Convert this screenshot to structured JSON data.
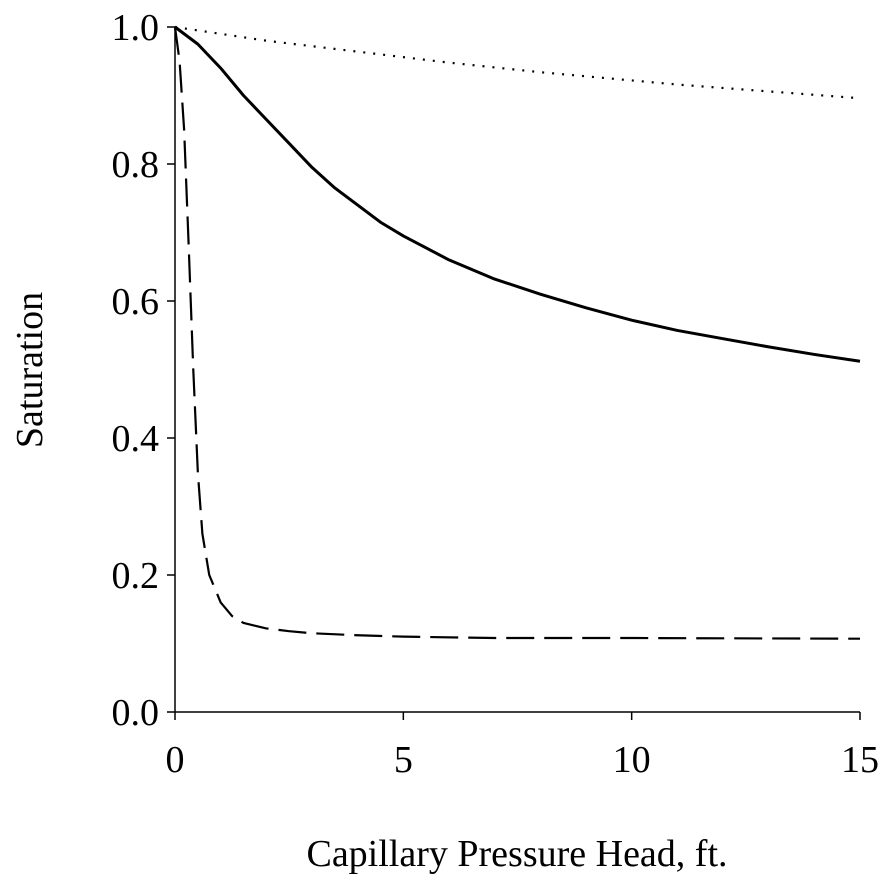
{
  "chart_data": {
    "type": "line",
    "title": "",
    "xlabel": "Capillary Pressure Head, ft.",
    "ylabel": "Saturation",
    "xlim": [
      0,
      15
    ],
    "ylim": [
      0.0,
      1.0
    ],
    "x_ticks": [
      "0",
      "5",
      "10",
      "15"
    ],
    "y_ticks": [
      "0.0",
      "0.2",
      "0.4",
      "0.6",
      "0.8",
      "1.0"
    ],
    "grid": false,
    "legend": "none",
    "series": [
      {
        "style": "solid",
        "color": "#000000",
        "x": [
          0,
          0.5,
          1,
          1.5,
          2,
          2.5,
          3,
          3.5,
          4,
          4.5,
          5,
          6,
          7,
          8,
          9,
          10,
          11,
          12,
          13,
          14,
          15
        ],
        "y": [
          1.0,
          0.975,
          0.94,
          0.9,
          0.865,
          0.83,
          0.795,
          0.765,
          0.74,
          0.715,
          0.695,
          0.66,
          0.632,
          0.61,
          0.59,
          0.572,
          0.557,
          0.545,
          0.533,
          0.522,
          0.512
        ]
      },
      {
        "style": "dashed",
        "color": "#000000",
        "x": [
          0,
          0.1,
          0.2,
          0.3,
          0.4,
          0.5,
          0.6,
          0.75,
          1.0,
          1.25,
          1.5,
          2,
          2.5,
          3,
          4,
          5,
          7,
          10,
          15
        ],
        "y": [
          1.0,
          0.95,
          0.85,
          0.68,
          0.5,
          0.35,
          0.26,
          0.2,
          0.16,
          0.14,
          0.13,
          0.122,
          0.118,
          0.115,
          0.112,
          0.11,
          0.108,
          0.108,
          0.107
        ]
      },
      {
        "style": "dotted",
        "color": "#000000",
        "x": [
          0,
          1,
          2,
          3,
          4,
          5,
          6,
          7,
          8,
          9,
          10,
          11,
          12,
          13,
          14,
          15
        ],
        "y": [
          1.0,
          0.99,
          0.98,
          0.972,
          0.964,
          0.956,
          0.948,
          0.941,
          0.934,
          0.928,
          0.922,
          0.916,
          0.911,
          0.906,
          0.901,
          0.896
        ]
      }
    ]
  }
}
